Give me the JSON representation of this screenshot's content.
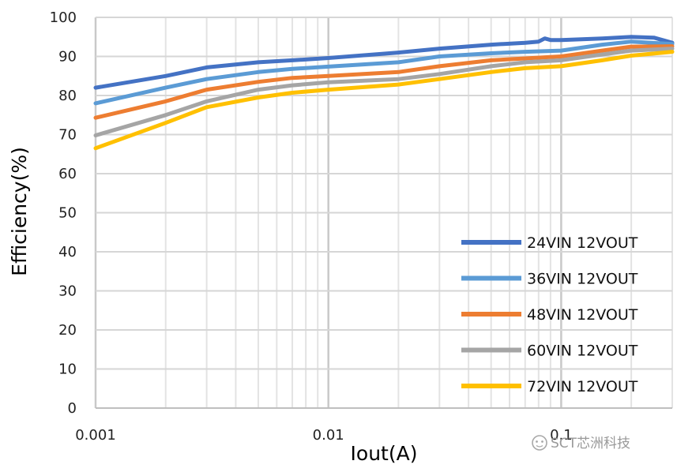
{
  "chart_data": {
    "type": "line",
    "title": "",
    "xlabel": "Iout(A)",
    "ylabel": "Efficiency(%)",
    "xscale": "log",
    "xlim": [
      0.001,
      0.3
    ],
    "ylim": [
      0,
      100
    ],
    "grid": true,
    "legend_position": "bottom-right",
    "x_ticks": [
      {
        "value": 0.001,
        "label": "0.001"
      },
      {
        "value": 0.01,
        "label": "0.01"
      },
      {
        "value": 0.1,
        "label": "0.1"
      }
    ],
    "y_ticks": [
      {
        "value": 0,
        "label": "0"
      },
      {
        "value": 10,
        "label": "10"
      },
      {
        "value": 20,
        "label": "20"
      },
      {
        "value": 30,
        "label": "30"
      },
      {
        "value": 40,
        "label": "40"
      },
      {
        "value": 50,
        "label": "50"
      },
      {
        "value": 60,
        "label": "60"
      },
      {
        "value": 70,
        "label": "70"
      },
      {
        "value": 80,
        "label": "80"
      },
      {
        "value": 90,
        "label": "90"
      },
      {
        "value": 100,
        "label": "100"
      }
    ],
    "series": [
      {
        "name": "24VIN 12VOUT",
        "color": "#4472C4",
        "points": [
          [
            0.001,
            82
          ],
          [
            0.002,
            85
          ],
          [
            0.003,
            87.2
          ],
          [
            0.005,
            88.5
          ],
          [
            0.007,
            89
          ],
          [
            0.01,
            89.6
          ],
          [
            0.02,
            91
          ],
          [
            0.03,
            92
          ],
          [
            0.05,
            93
          ],
          [
            0.07,
            93.5
          ],
          [
            0.08,
            93.8
          ],
          [
            0.085,
            94.6
          ],
          [
            0.09,
            94.2
          ],
          [
            0.1,
            94.2
          ],
          [
            0.15,
            94.6
          ],
          [
            0.2,
            95
          ],
          [
            0.25,
            94.8
          ],
          [
            0.3,
            93.5
          ]
        ]
      },
      {
        "name": "36VIN 12VOUT",
        "color": "#5B9BD5",
        "points": [
          [
            0.001,
            78
          ],
          [
            0.002,
            82
          ],
          [
            0.003,
            84.2
          ],
          [
            0.005,
            86
          ],
          [
            0.007,
            86.8
          ],
          [
            0.01,
            87.4
          ],
          [
            0.02,
            88.5
          ],
          [
            0.03,
            90
          ],
          [
            0.05,
            90.8
          ],
          [
            0.07,
            91.2
          ],
          [
            0.1,
            91.5
          ],
          [
            0.15,
            93
          ],
          [
            0.2,
            93.8
          ],
          [
            0.3,
            93.2
          ]
        ]
      },
      {
        "name": "48VIN 12VOUT",
        "color": "#ED7D31",
        "points": [
          [
            0.001,
            74.3
          ],
          [
            0.002,
            78.5
          ],
          [
            0.003,
            81.5
          ],
          [
            0.005,
            83.5
          ],
          [
            0.007,
            84.5
          ],
          [
            0.01,
            85
          ],
          [
            0.02,
            86
          ],
          [
            0.03,
            87.5
          ],
          [
            0.05,
            89
          ],
          [
            0.07,
            89.5
          ],
          [
            0.1,
            90
          ],
          [
            0.15,
            91.5
          ],
          [
            0.2,
            92.5
          ],
          [
            0.3,
            92.6
          ]
        ]
      },
      {
        "name": "60VIN 12VOUT",
        "color": "#A5A5A5",
        "points": [
          [
            0.001,
            69.8
          ],
          [
            0.002,
            75
          ],
          [
            0.003,
            78.5
          ],
          [
            0.005,
            81.5
          ],
          [
            0.007,
            82.6
          ],
          [
            0.01,
            83.4
          ],
          [
            0.02,
            84.2
          ],
          [
            0.03,
            85.5
          ],
          [
            0.05,
            87.5
          ],
          [
            0.07,
            88.5
          ],
          [
            0.1,
            89
          ],
          [
            0.15,
            90.5
          ],
          [
            0.2,
            91.5
          ],
          [
            0.3,
            92
          ]
        ]
      },
      {
        "name": "72VIN 12VOUT",
        "color": "#FFC000",
        "points": [
          [
            0.001,
            66.5
          ],
          [
            0.002,
            73
          ],
          [
            0.003,
            77
          ],
          [
            0.005,
            79.5
          ],
          [
            0.007,
            80.7
          ],
          [
            0.01,
            81.5
          ],
          [
            0.02,
            82.8
          ],
          [
            0.03,
            84.2
          ],
          [
            0.05,
            86
          ],
          [
            0.07,
            87
          ],
          [
            0.1,
            87.5
          ],
          [
            0.15,
            89
          ],
          [
            0.2,
            90.2
          ],
          [
            0.3,
            91.2
          ]
        ]
      }
    ]
  },
  "watermark": {
    "text": "SCT芯洲科技"
  }
}
